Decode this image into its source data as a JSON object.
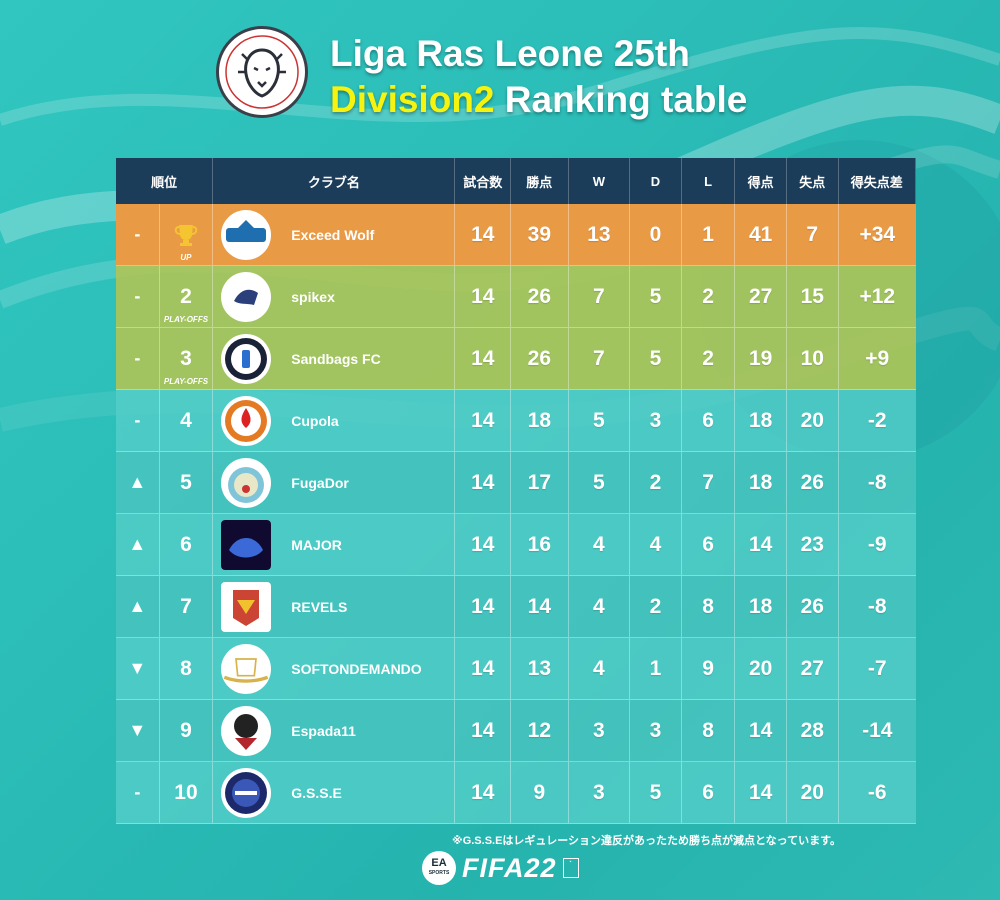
{
  "header": {
    "title_line1": "Liga Ras Leone 25th",
    "title_division": "Division2",
    "title_rest": " Ranking table",
    "logo_text": "Liga Ras Leone"
  },
  "columns": {
    "rank": "順位",
    "club": "クラブ名",
    "played": "試合数",
    "points": "勝点",
    "w": "W",
    "d": "D",
    "l": "L",
    "gf": "得点",
    "ga": "失点",
    "gd": "得失点差"
  },
  "rows": [
    {
      "move": "-",
      "pos": "",
      "tag": "UP",
      "club": "Exceed Wolf",
      "played": "14",
      "points": "39",
      "w": "13",
      "d": "0",
      "l": "1",
      "gf": "41",
      "ga": "7",
      "gd": "+34",
      "band": "orange",
      "trophy": true
    },
    {
      "move": "-",
      "pos": "2",
      "tag": "PLAY-OFFS",
      "club": "spikex",
      "played": "14",
      "points": "26",
      "w": "7",
      "d": "5",
      "l": "2",
      "gf": "27",
      "ga": "15",
      "gd": "+12",
      "band": "green"
    },
    {
      "move": "-",
      "pos": "3",
      "tag": "PLAY-OFFS",
      "club": "Sandbags FC",
      "played": "14",
      "points": "26",
      "w": "7",
      "d": "5",
      "l": "2",
      "gf": "19",
      "ga": "10",
      "gd": "+9",
      "band": "green"
    },
    {
      "move": "-",
      "pos": "4",
      "tag": "",
      "club": "Cupola",
      "played": "14",
      "points": "18",
      "w": "5",
      "d": "3",
      "l": "6",
      "gf": "18",
      "ga": "20",
      "gd": "-2",
      "band": "teal"
    },
    {
      "move": "▲",
      "pos": "5",
      "tag": "",
      "club": "FugaDor",
      "played": "14",
      "points": "17",
      "w": "5",
      "d": "2",
      "l": "7",
      "gf": "18",
      "ga": "26",
      "gd": "-8",
      "band": "teal2"
    },
    {
      "move": "▲",
      "pos": "6",
      "tag": "",
      "club": "MAJOR",
      "played": "14",
      "points": "16",
      "w": "4",
      "d": "4",
      "l": "6",
      "gf": "14",
      "ga": "23",
      "gd": "-9",
      "band": "teal"
    },
    {
      "move": "▲",
      "pos": "7",
      "tag": "",
      "club": "REVELS",
      "played": "14",
      "points": "14",
      "w": "4",
      "d": "2",
      "l": "8",
      "gf": "18",
      "ga": "26",
      "gd": "-8",
      "band": "teal2"
    },
    {
      "move": "▼",
      "pos": "8",
      "tag": "",
      "club": "SOFTONDEMANDO",
      "played": "14",
      "points": "13",
      "w": "4",
      "d": "1",
      "l": "9",
      "gf": "20",
      "ga": "27",
      "gd": "-7",
      "band": "teal"
    },
    {
      "move": "▼",
      "pos": "9",
      "tag": "",
      "club": "Espada11",
      "played": "14",
      "points": "12",
      "w": "3",
      "d": "3",
      "l": "8",
      "gf": "14",
      "ga": "28",
      "gd": "-14",
      "band": "teal2"
    },
    {
      "move": "-",
      "pos": "10",
      "tag": "",
      "club": "G.S.S.E",
      "played": "14",
      "points": "9",
      "w": "3",
      "d": "5",
      "l": "6",
      "gf": "14",
      "ga": "20",
      "gd": "-6",
      "band": "teal"
    }
  ],
  "footnote": "※G.S.S.Eはレギュレーション違反があったため勝ち点が減点となっています。",
  "footer": {
    "ea": "EA",
    "ea_sub": "SPORTS",
    "fifa": "FIFA22"
  },
  "colors": {
    "header_bg": "#1c3d5a",
    "promotion": "#e99a45",
    "playoff": "#abc458",
    "division_accent": "#f6f30f"
  }
}
